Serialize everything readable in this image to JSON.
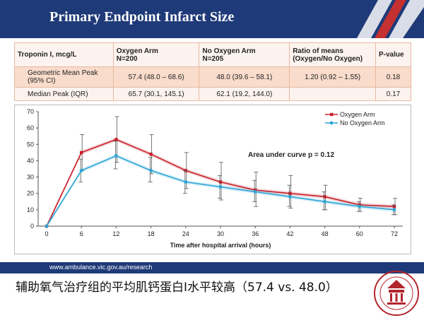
{
  "header": {
    "title": "Primary Endpoint Infarct Size"
  },
  "table": {
    "headers": [
      {
        "line1": "Troponin I, mcg/L",
        "line2": ""
      },
      {
        "line1": "Oxygen Arm",
        "line2": "N=200"
      },
      {
        "line1": "No Oxygen Arm",
        "line2": "N=205"
      },
      {
        "line1": "Ratio of means",
        "line2": "(Oxygen/No Oxygen)"
      },
      {
        "line1": "P-value",
        "line2": ""
      }
    ],
    "rows": [
      {
        "label1": "Geometric Mean Peak",
        "label2": "(95% CI)",
        "oxygen": "57.4 (48.0 – 68.6)",
        "no_oxygen": "48.0 (39.6 – 58.1)",
        "ratio": "1.20 (0.92 – 1.55)",
        "p": "0.18"
      },
      {
        "label1": "Median Peak (IQR)",
        "label2": "",
        "oxygen": "65.7 (30.1, 145.1)",
        "no_oxygen": "62.1 (19.2, 144.0)",
        "ratio": "",
        "p": "0.17"
      }
    ]
  },
  "chart_data": {
    "type": "line",
    "x": [
      0,
      6,
      12,
      18,
      24,
      30,
      36,
      42,
      48,
      60,
      72
    ],
    "series": [
      {
        "name": "Oxygen Arm",
        "color": "#c8202a",
        "values": [
          0,
          45,
          53,
          44,
          34,
          27,
          22,
          20,
          18,
          13,
          12
        ],
        "err_hi": [
          0,
          56,
          67,
          56,
          45,
          39,
          33,
          31,
          25,
          17,
          17
        ],
        "err_lo": [
          0,
          34,
          39,
          32,
          23,
          16,
          12,
          11,
          10,
          9,
          7
        ]
      },
      {
        "name": "No Oxygen Arm",
        "color": "#2ea6d6",
        "values": [
          0,
          34,
          43,
          34,
          27,
          24,
          21,
          18,
          15,
          12,
          10
        ],
        "err_hi": [
          0,
          41,
          52,
          42,
          34,
          31,
          28,
          25,
          21,
          15,
          13
        ],
        "err_lo": [
          0,
          27,
          35,
          27,
          20,
          17,
          15,
          12,
          10,
          9,
          7
        ]
      }
    ],
    "xlabel": "Time after hospital arrival (hours)",
    "ylabel": "",
    "ylim": [
      0,
      70
    ],
    "yticks": [
      0,
      10,
      20,
      30,
      40,
      50,
      60,
      70
    ],
    "annotation": "Area under curve p = 0.12",
    "grid": false,
    "legend_position": "top-right"
  },
  "footer": {
    "url": "www.ambulance.vic.gov.au/research"
  },
  "caption": "辅助氧气治疗组的平均肌钙蛋白I水平较高（57.4 vs. 48.0）",
  "colors": {
    "header": "#1f3a78",
    "oxygen": "#c8202a",
    "no_oxygen": "#2ea6d6",
    "seal": "#b3262d"
  }
}
